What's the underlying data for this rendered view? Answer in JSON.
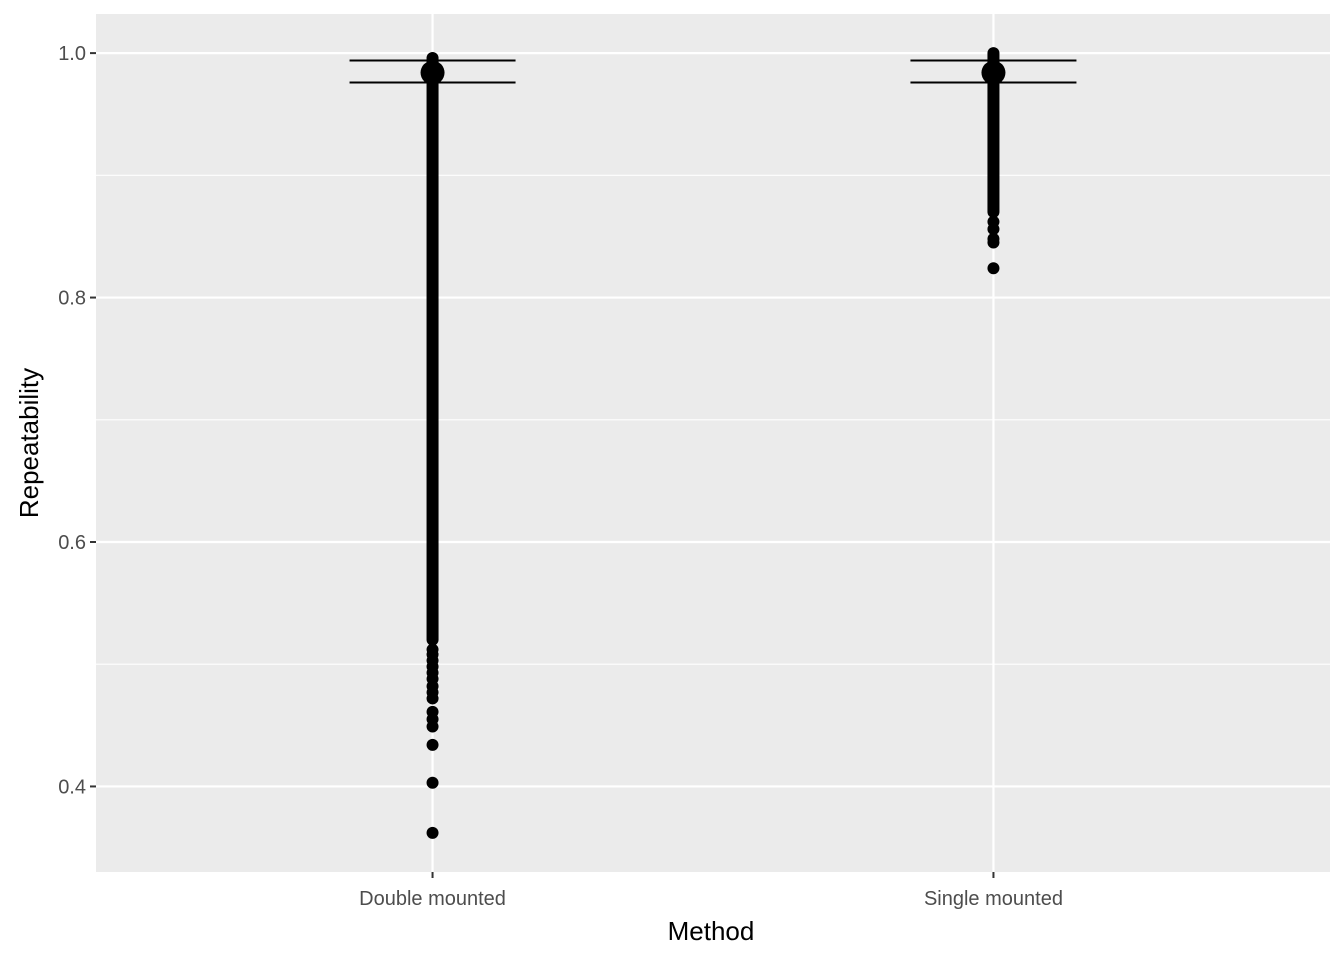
{
  "chart_data": {
    "type": "scatter",
    "xlabel": "Method",
    "ylabel": "Repeatability",
    "categories": [
      "Double mounted",
      "Single mounted"
    ],
    "ylim": [
      0.33,
      1.032
    ],
    "y_ticks": [
      0.4,
      0.6,
      0.8,
      1.0
    ],
    "y_tick_labels": [
      "0.4",
      "0.6",
      "0.8",
      "1.0"
    ],
    "grid": true,
    "panel_background": "#ebebeb",
    "grid_color": "#ffffff",
    "point_color": "#000000",
    "series": [
      {
        "category": "Double mounted",
        "mean": 0.984,
        "ci_upper": 0.994,
        "ci_lower": 0.976,
        "dense_range": [
          0.52,
          0.996
        ],
        "points": [
          0.362,
          0.403,
          0.434,
          0.449,
          0.455,
          0.461,
          0.472,
          0.477,
          0.482,
          0.488,
          0.493,
          0.498,
          0.503,
          0.508,
          0.512
        ]
      },
      {
        "category": "Single mounted",
        "mean": 0.984,
        "ci_upper": 0.994,
        "ci_lower": 0.976,
        "dense_range": [
          0.87,
          1.0
        ],
        "points": [
          0.824,
          0.845,
          0.848,
          0.856,
          0.862
        ]
      }
    ]
  }
}
